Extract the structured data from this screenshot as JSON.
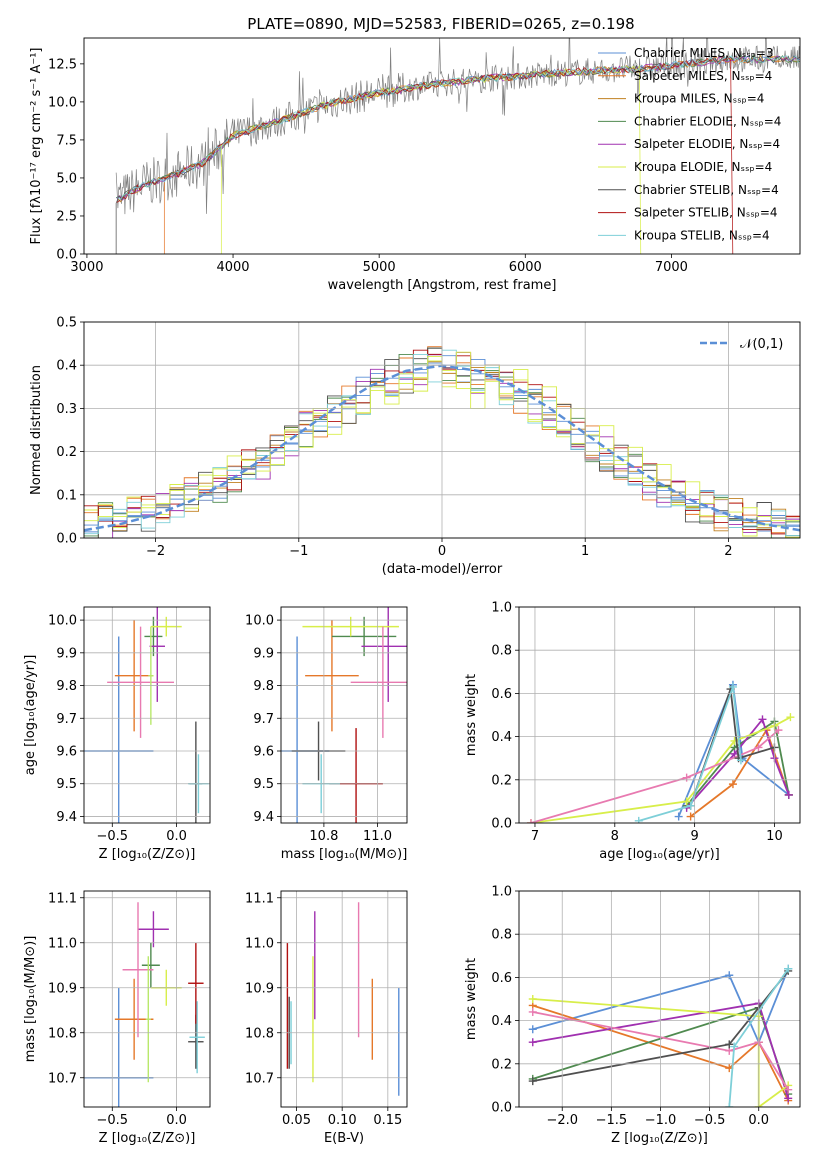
{
  "figure_title": "PLATE=0890, MJD=52583, FIBERID=0265, z=0.198",
  "colors": {
    "chabrier_miles": "#5b8fd6",
    "salpeter_miles": "#e5782a",
    "kroupa_miles": "#c08020",
    "chabrier_elodie": "#4f8a4f",
    "salpeter_elodie": "#a030b0",
    "kroupa_elodie": "#d8ee4a",
    "chabrier_stelib": "#505050",
    "salpeter_stelib": "#b01010",
    "kroupa_stelib": "#7ecfd8",
    "normal": "#5b8fd6",
    "pink": "#e87ab0",
    "lime": "#b8e86a",
    "grid": "#b0b0b0"
  },
  "chart_data": [
    {
      "id": "spectrum",
      "type": "line",
      "title": "PLATE=0890, MJD=52583, FIBERID=0265, z=0.198",
      "xlabel": "wavelength [Angstrom, rest frame]",
      "ylabel": "Flux [fλ10⁻¹⁷ erg cm⁻² s⁻¹ A⁻¹]",
      "xlim": [
        2980,
        7880
      ],
      "ylim": [
        0,
        14.2
      ],
      "xticks": [
        "3000",
        "4000",
        "5000",
        "6000",
        "7000"
      ],
      "yticks": [
        "0.0",
        "2.5",
        "5.0",
        "7.5",
        "10.0",
        "12.5"
      ],
      "grid": false,
      "legend_placement": "top-right",
      "legend": [
        "Chabrier MILES, N_SSP=3",
        "Salpeter MILES, N_SSP=4",
        "Kroupa MILES, N_SSP=4",
        "Chabrier ELODIE, N_SSP=4",
        "Salpeter ELODIE, N_SSP=4",
        "Kroupa ELODIE, N_SSP=4",
        "Chabrier STELIB, N_SSP=4",
        "Salpeter STELIB, N_SSP=4",
        "Kroupa STELIB, N_SSP=4"
      ],
      "continuum": {
        "x": [
          3200,
          3400,
          3600,
          3800,
          4000,
          4200,
          4400,
          4600,
          4800,
          5000,
          5200,
          5400,
          5600,
          5800,
          6000,
          6200,
          6400,
          6600,
          6800,
          7000,
          7200,
          7400
        ],
        "y": [
          3.5,
          4.6,
          5.2,
          6.0,
          7.8,
          8.4,
          9.0,
          9.7,
          10.2,
          10.6,
          10.9,
          11.2,
          11.4,
          11.6,
          11.7,
          11.9,
          12.0,
          12.1,
          12.2,
          12.4,
          12.6,
          12.8
        ]
      },
      "model_starts": [
        {
          "series": "Chabrier STELIB",
          "start": 3200
        },
        {
          "series": "Salpeter MILES",
          "start": 3530
        },
        {
          "series": "Kroupa ELODIE",
          "start": 3920
        }
      ],
      "model_ends": [
        {
          "series": "Kroupa ELODIE",
          "end": 6790
        },
        {
          "series": "Salpeter STELIB",
          "end": 7420
        }
      ]
    },
    {
      "id": "residuals",
      "type": "line",
      "xlabel": "(data-model)/error",
      "ylabel": "Normed distribution",
      "xlim": [
        -2.5,
        2.5
      ],
      "ylim": [
        0,
        0.5
      ],
      "xticks": [
        "−2",
        "−1",
        "0",
        "1",
        "2"
      ],
      "yticks": [
        "0.0",
        "0.1",
        "0.2",
        "0.3",
        "0.4",
        "0.5"
      ],
      "grid": true,
      "legend_placement": "top-right",
      "legend": [
        "𝒩(0,1)"
      ],
      "bin_width": 0.1,
      "bins_start": -2.5,
      "series": [
        {
          "name": "Chabrier MILES",
          "values": [
            0.03,
            0.04,
            0.04,
            0.05,
            0.06,
            0.07,
            0.09,
            0.1,
            0.11,
            0.12,
            0.14,
            0.16,
            0.18,
            0.2,
            0.22,
            0.25,
            0.27,
            0.29,
            0.31,
            0.33,
            0.35,
            0.37,
            0.38,
            0.39,
            0.4,
            0.4,
            0.39,
            0.38,
            0.37,
            0.35,
            0.33,
            0.31,
            0.29,
            0.27,
            0.24,
            0.22,
            0.19,
            0.17,
            0.15,
            0.13,
            0.11,
            0.09,
            0.08,
            0.07,
            0.06,
            0.05,
            0.04,
            0.04,
            0.03,
            0.03
          ]
        },
        {
          "name": "Kroupa ELODIE",
          "values": [
            0.04,
            0.05,
            0.05,
            0.06,
            0.07,
            0.08,
            0.11,
            0.09,
            0.12,
            0.16,
            0.19,
            0.18,
            0.2,
            0.17,
            0.25,
            0.21,
            0.3,
            0.24,
            0.32,
            0.29,
            0.35,
            0.31,
            0.38,
            0.34,
            0.42,
            0.35,
            0.43,
            0.3,
            0.4,
            0.32,
            0.39,
            0.27,
            0.35,
            0.25,
            0.3,
            0.2,
            0.26,
            0.17,
            0.21,
            0.13,
            0.17,
            0.1,
            0.13,
            0.08,
            0.09,
            0.06,
            0.07,
            0.05,
            0.04,
            0.04
          ]
        }
      ],
      "normal_curve": {
        "x": [
          -2.5,
          -2.25,
          -2,
          -1.75,
          -1.5,
          -1.25,
          -1,
          -0.75,
          -0.5,
          -0.25,
          0,
          0.25,
          0.5,
          0.75,
          1,
          1.25,
          1.5,
          1.75,
          2,
          2.25,
          2.5
        ],
        "y": [
          0.018,
          0.032,
          0.054,
          0.086,
          0.13,
          0.183,
          0.242,
          0.301,
          0.352,
          0.387,
          0.399,
          0.387,
          0.352,
          0.301,
          0.242,
          0.183,
          0.13,
          0.086,
          0.054,
          0.032,
          0.018
        ]
      }
    },
    {
      "id": "age_vs_Z",
      "type": "scatter",
      "xlabel": "Z [log₁₀(Z/Z⊙)]",
      "ylabel": "age  [log₁₀(age/yr)]",
      "xlim": [
        -0.72,
        0.26
      ],
      "ylim": [
        9.38,
        10.04
      ],
      "xticks": [
        "−0.5",
        "0.0"
      ],
      "yticks": [
        "9.4",
        "9.5",
        "9.6",
        "9.7",
        "9.8",
        "9.9",
        "10.0"
      ],
      "grid": true,
      "points": [
        {
          "name": "Chabrier MILES",
          "x": -0.45,
          "y": 9.6,
          "xerr": 0.27,
          "yerr": 0.35
        },
        {
          "name": "Salpeter MILES",
          "x": -0.33,
          "y": 9.83,
          "xerr": 0.15,
          "yerr": 0.17
        },
        {
          "name": "Chabrier ELODIE",
          "x": -0.18,
          "y": 9.95,
          "xerr": 0.07,
          "yerr": 0.06
        },
        {
          "name": "Salpeter ELODIE",
          "x": -0.15,
          "y": 9.92,
          "xerr": 0.06,
          "yerr": 0.17
        },
        {
          "name": "Kroupa ELODIE",
          "x": -0.08,
          "y": 9.98,
          "xerr": 0.12,
          "yerr": 0.03
        },
        {
          "name": "pink",
          "x": -0.28,
          "y": 9.81,
          "xerr": 0.26,
          "yerr": 0.17
        },
        {
          "name": "Chabrier STELIB",
          "x": 0.15,
          "y": 9.5,
          "xerr": 0.05,
          "yerr": 0.19
        },
        {
          "name": "Kroupa STELIB",
          "x": 0.17,
          "y": 9.5,
          "xerr": 0.08,
          "yerr": 0.09
        },
        {
          "name": "lime",
          "x": -0.2,
          "y": 9.83,
          "xerr": 0.02,
          "yerr": 0.15
        }
      ]
    },
    {
      "id": "age_vs_mass",
      "type": "scatter",
      "xlabel": "mass [log₁₀(M/M⊙)]",
      "ylabel": "",
      "xlim": [
        10.64,
        11.11
      ],
      "ylim": [
        9.38,
        10.04
      ],
      "xticks": [
        "10.8",
        "11.0"
      ],
      "yticks": [
        "9.4",
        "9.5",
        "9.6",
        "9.7",
        "9.8",
        "9.9",
        "10.0"
      ],
      "grid": true,
      "points": [
        {
          "name": "Chabrier MILES",
          "x": 10.7,
          "y": 9.6,
          "xerr": 0.12,
          "yerr": 0.35
        },
        {
          "name": "Salpeter MILES",
          "x": 10.83,
          "y": 9.83,
          "xerr": 0.1,
          "yerr": 0.17
        },
        {
          "name": "Chabrier ELODIE",
          "x": 10.95,
          "y": 9.95,
          "xerr": 0.12,
          "yerr": 0.06
        },
        {
          "name": "Salpeter ELODIE",
          "x": 11.04,
          "y": 9.92,
          "xerr": 0.1,
          "yerr": 0.17
        },
        {
          "name": "Kroupa ELODIE",
          "x": 10.9,
          "y": 9.98,
          "xerr": 0.18,
          "yerr": 0.03
        },
        {
          "name": "pink",
          "x": 11.02,
          "y": 9.81,
          "xerr": 0.12,
          "yerr": 0.17
        },
        {
          "name": "Chabrier STELIB",
          "x": 10.78,
          "y": 9.6,
          "xerr": 0.1,
          "yerr": 0.09
        },
        {
          "name": "Salpeter STELIB",
          "x": 10.92,
          "y": 9.5,
          "xerr": 0.1,
          "yerr": 0.17
        },
        {
          "name": "Kroupa STELIB",
          "x": 10.79,
          "y": 9.5,
          "xerr": 0.07,
          "yerr": 0.09
        }
      ]
    },
    {
      "id": "weight_vs_age",
      "type": "line",
      "xlabel": "age  [log₁₀(age/yr)]",
      "ylabel": "mass weight",
      "xlim": [
        6.8,
        10.32
      ],
      "ylim": [
        0,
        1.0
      ],
      "xticks": [
        "7",
        "8",
        "9",
        "10"
      ],
      "yticks": [
        "0.0",
        "0.2",
        "0.4",
        "0.6",
        "0.8",
        "1.0"
      ],
      "grid": true,
      "series": [
        {
          "name": "Chabrier MILES",
          "x": [
            8.8,
            9.48,
            9.6,
            10.18
          ],
          "y": [
            0.03,
            0.64,
            0.3,
            0.13
          ]
        },
        {
          "name": "Salpeter MILES",
          "x": [
            8.95,
            9.48,
            9.9,
            10.18
          ],
          "y": [
            0.03,
            0.18,
            0.43,
            0.13
          ]
        },
        {
          "name": "Chabrier ELODIE",
          "x": [
            8.9,
            9.5,
            10.0,
            10.18
          ],
          "y": [
            0.08,
            0.35,
            0.47,
            0.13
          ]
        },
        {
          "name": "Salpeter ELODIE",
          "x": [
            8.9,
            9.5,
            9.85,
            10.0,
            10.18
          ],
          "y": [
            0.07,
            0.32,
            0.48,
            0.3,
            0.13
          ]
        },
        {
          "name": "Kroupa ELODIE",
          "x": [
            6.95,
            8.9,
            9.5,
            10.0,
            10.2
          ],
          "y": [
            0.0,
            0.1,
            0.38,
            0.45,
            0.49
          ]
        },
        {
          "name": "pink",
          "x": [
            6.95,
            8.9,
            9.8,
            10.05
          ],
          "y": [
            0.0,
            0.21,
            0.35,
            0.43
          ]
        },
        {
          "name": "Chabrier STELIB",
          "x": [
            8.95,
            9.45,
            9.55,
            10.0
          ],
          "y": [
            0.08,
            0.62,
            0.3,
            0.35
          ]
        },
        {
          "name": "Kroupa STELIB",
          "x": [
            8.3,
            8.95,
            9.48,
            9.58
          ],
          "y": [
            0.01,
            0.08,
            0.63,
            0.29
          ]
        }
      ]
    },
    {
      "id": "mass_vs_Z",
      "type": "scatter",
      "xlabel": "Z [log₁₀(Z/Z⊙)]",
      "ylabel": "mass [log₁₀(M/M⊙)]",
      "xlim": [
        -0.72,
        0.26
      ],
      "ylim": [
        10.635,
        11.115
      ],
      "xticks": [
        "−0.5",
        "0.0"
      ],
      "yticks": [
        "10.7",
        "10.8",
        "10.9",
        "11.0",
        "11.1"
      ],
      "grid": true,
      "points": [
        {
          "name": "Chabrier MILES",
          "x": -0.45,
          "y": 10.7,
          "xerr": 0.27,
          "yerr": 0.2
        },
        {
          "name": "Salpeter MILES",
          "x": -0.33,
          "y": 10.83,
          "xerr": 0.15,
          "yerr": 0.09
        },
        {
          "name": "Chabrier ELODIE",
          "x": -0.2,
          "y": 10.95,
          "xerr": 0.07,
          "yerr": 0.05
        },
        {
          "name": "Salpeter ELODIE",
          "x": -0.18,
          "y": 11.03,
          "xerr": 0.12,
          "yerr": 0.04
        },
        {
          "name": "Kroupa ELODIE",
          "x": -0.08,
          "y": 10.9,
          "xerr": 0.12,
          "yerr": 0.04
        },
        {
          "name": "pink",
          "x": -0.3,
          "y": 10.94,
          "xerr": 0.12,
          "yerr": 0.15
        },
        {
          "name": "Chabrier STELIB",
          "x": 0.15,
          "y": 10.78,
          "xerr": 0.06,
          "yerr": 0.06
        },
        {
          "name": "Salpeter STELIB",
          "x": 0.15,
          "y": 10.91,
          "xerr": 0.06,
          "yerr": 0.09
        },
        {
          "name": "Kroupa STELIB",
          "x": 0.16,
          "y": 10.79,
          "xerr": 0.06,
          "yerr": 0.08
        },
        {
          "name": "lime",
          "x": -0.22,
          "y": 10.83,
          "xerr": 0.02,
          "yerr": 0.14
        }
      ]
    },
    {
      "id": "mass_vs_ebv",
      "type": "scatter",
      "xlabel": "E(B-V)",
      "ylabel": "",
      "xlim": [
        0.033,
        0.171
      ],
      "ylim": [
        10.635,
        11.115
      ],
      "xticks": [
        "0.05",
        "0.10",
        "0.15"
      ],
      "yticks": [
        "10.7",
        "10.8",
        "10.9",
        "11.0",
        "11.1"
      ],
      "grid": true,
      "points": [
        {
          "name": "Salpeter STELIB",
          "x": 0.04,
          "y": 10.86,
          "xerr": 0,
          "yerr": 0.14
        },
        {
          "name": "Chabrier STELIB",
          "x": 0.042,
          "y": 10.8,
          "xerr": 0,
          "yerr": 0.08
        },
        {
          "name": "Kroupa STELIB",
          "x": 0.044,
          "y": 10.8,
          "xerr": 0,
          "yerr": 0.07
        },
        {
          "name": "Salpeter ELODIE",
          "x": 0.07,
          "y": 10.95,
          "xerr": 0,
          "yerr": 0.12
        },
        {
          "name": "Kroupa ELODIE",
          "x": 0.068,
          "y": 10.83,
          "xerr": 0,
          "yerr": 0.14
        },
        {
          "name": "pink",
          "x": 0.118,
          "y": 10.94,
          "xerr": 0,
          "yerr": 0.15
        },
        {
          "name": "Salpeter MILES",
          "x": 0.133,
          "y": 10.83,
          "xerr": 0,
          "yerr": 0.09
        },
        {
          "name": "Chabrier MILES",
          "x": 0.162,
          "y": 10.78,
          "xerr": 0,
          "yerr": 0.12
        }
      ]
    },
    {
      "id": "weight_vs_Z",
      "type": "line",
      "xlabel": "Z [log₁₀(Z/Z⊙)]",
      "ylabel": "mass weight",
      "xlim": [
        -2.44,
        0.42
      ],
      "ylim": [
        0,
        1.0
      ],
      "xticks": [
        "−2.0",
        "−1.5",
        "−1.0",
        "−0.5",
        "0.0"
      ],
      "yticks": [
        "0.0",
        "0.2",
        "0.4",
        "0.6",
        "0.8",
        "1.0"
      ],
      "grid": true,
      "series": [
        {
          "name": "Chabrier MILES",
          "x": [
            -2.3,
            -0.3,
            0.0,
            0.3
          ],
          "y": [
            0.36,
            0.61,
            0.3,
            0.64
          ]
        },
        {
          "name": "Salpeter MILES",
          "x": [
            -2.3,
            -0.3,
            0.0,
            0.3
          ],
          "y": [
            0.47,
            0.18,
            0.3,
            0.03
          ]
        },
        {
          "name": "Chabrier ELODIE",
          "x": [
            -2.3,
            0.0,
            0.3
          ],
          "y": [
            0.13,
            0.46,
            0.06
          ]
        },
        {
          "name": "Salpeter ELODIE",
          "x": [
            -2.3,
            0.0,
            0.3
          ],
          "y": [
            0.3,
            0.48,
            0.04
          ]
        },
        {
          "name": "Kroupa ELODIE",
          "x": [
            -2.3,
            0.0,
            0.0,
            0.3
          ],
          "y": [
            0.5,
            0.42,
            0.0,
            0.1
          ]
        },
        {
          "name": "pink",
          "x": [
            -2.3,
            -0.3,
            0.0,
            0.3
          ],
          "y": [
            0.44,
            0.26,
            0.3,
            0.08
          ]
        },
        {
          "name": "Chabrier STELIB",
          "x": [
            -2.3,
            -0.3,
            0.0,
            0.3
          ],
          "y": [
            0.12,
            0.29,
            0.46,
            0.63
          ]
        },
        {
          "name": "Kroupa STELIB",
          "x": [
            -0.3,
            -0.25,
            0.3
          ],
          "y": [
            0.0,
            0.28,
            0.64
          ]
        }
      ]
    }
  ]
}
